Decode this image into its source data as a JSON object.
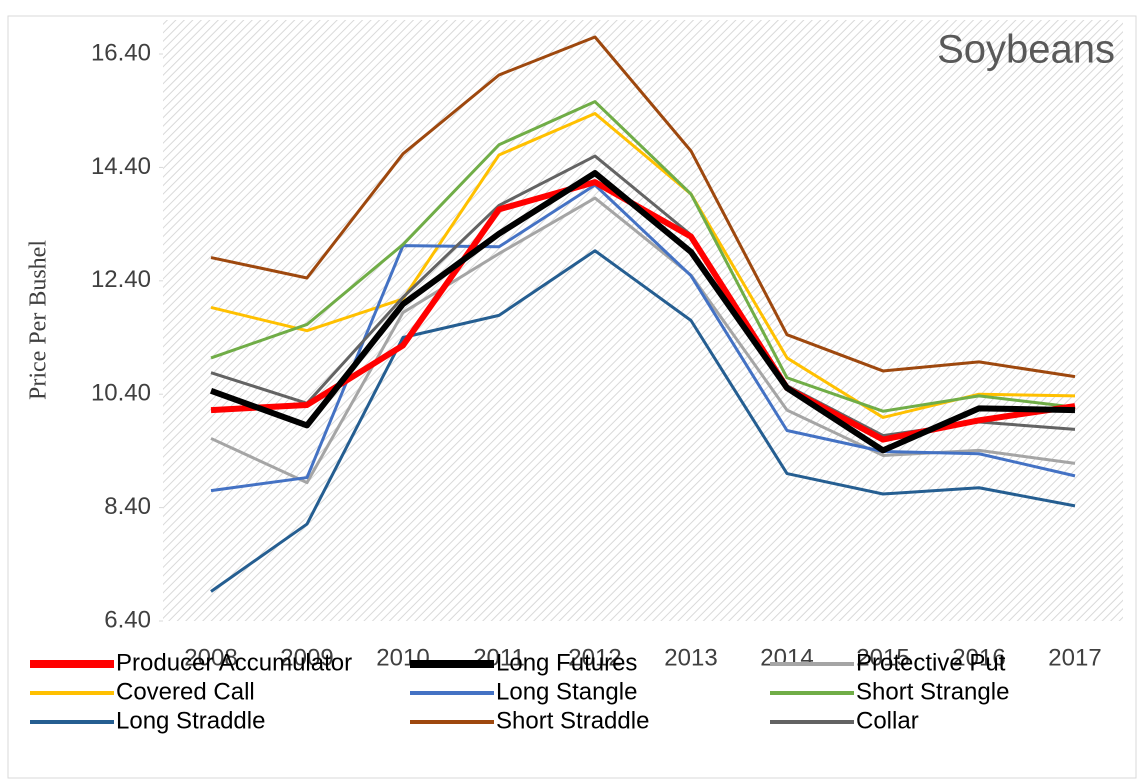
{
  "chart_data": {
    "type": "line",
    "annotation": "Soybeans",
    "y_label": "Price Per Bushel",
    "categories": [
      "2008",
      "2009",
      "2010",
      "2011",
      "2012",
      "2013",
      "2014",
      "2015",
      "2016",
      "2017"
    ],
    "ylim": [
      6.4,
      17.0
    ],
    "yticks": [
      {
        "value": 6.4,
        "label": "6.40"
      },
      {
        "value": 8.4,
        "label": "8.40"
      },
      {
        "value": 10.4,
        "label": "10.40"
      },
      {
        "value": 12.4,
        "label": "12.40"
      },
      {
        "value": 14.4,
        "label": "14.40"
      },
      {
        "value": 16.4,
        "label": "16.40"
      }
    ],
    "series": [
      {
        "name": "Producer Accumulator",
        "color": "#ff0000",
        "values": [
          10.12,
          10.21,
          11.26,
          13.66,
          14.14,
          13.18,
          10.51,
          9.6,
          9.94,
          10.19
        ]
      },
      {
        "name": "Long Futures",
        "color": "#000000",
        "values": [
          10.46,
          9.85,
          11.99,
          13.23,
          14.3,
          12.91,
          10.51,
          9.41,
          10.15,
          10.12
        ]
      },
      {
        "name": "Protective Put",
        "color": "#a5a5a5",
        "values": [
          9.62,
          8.84,
          11.84,
          12.88,
          13.86,
          12.5,
          10.12,
          9.32,
          9.41,
          9.18
        ]
      },
      {
        "name": "Covered Call",
        "color": "#ffc000",
        "values": [
          11.93,
          11.52,
          12.08,
          14.62,
          15.35,
          13.93,
          11.04,
          9.99,
          10.4,
          10.37
        ]
      },
      {
        "name": "Long Stangle",
        "color": "#4472c4",
        "values": [
          8.7,
          8.93,
          13.02,
          13.0,
          14.09,
          12.49,
          9.76,
          9.39,
          9.35,
          8.96
        ]
      },
      {
        "name": "Short Strangle",
        "color": "#70ad47",
        "values": [
          11.04,
          11.63,
          13.04,
          14.8,
          15.56,
          13.93,
          10.69,
          10.1,
          10.37,
          10.17
        ]
      },
      {
        "name": "Long Straddle",
        "color": "#255e91",
        "values": [
          6.92,
          8.11,
          11.4,
          11.79,
          12.93,
          11.7,
          9.0,
          8.64,
          8.75,
          8.43
        ]
      },
      {
        "name": "Short Straddle",
        "color": "#9e480e",
        "values": [
          12.81,
          12.45,
          14.64,
          16.03,
          16.7,
          14.69,
          11.45,
          10.81,
          10.97,
          10.71
        ]
      },
      {
        "name": "Collar",
        "color": "#636363",
        "values": [
          10.78,
          10.24,
          12.11,
          13.73,
          14.6,
          13.21,
          10.55,
          9.67,
          9.91,
          9.78
        ]
      }
    ]
  }
}
